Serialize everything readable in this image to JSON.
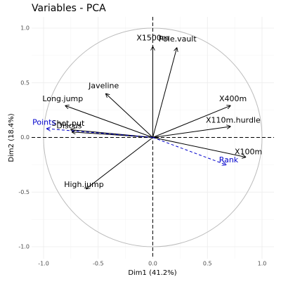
{
  "chart_data": {
    "type": "pca-variables",
    "title": "Variables - PCA",
    "xlabel": "Dim1 (41.2%)",
    "ylabel": "Dim2 (18.4%)",
    "xlim": [
      -1.0,
      1.0
    ],
    "ylim": [
      -1.0,
      1.0
    ],
    "xticks": [
      {
        "value": -1.0,
        "label": "-1.0"
      },
      {
        "value": -0.5,
        "label": "-0.5"
      },
      {
        "value": 0,
        "label": "0.0"
      },
      {
        "value": 0.5,
        "label": "0.5"
      },
      {
        "value": 1.0,
        "label": "1.0"
      }
    ],
    "yticks": [
      {
        "value": -1.0,
        "label": "-1.0"
      },
      {
        "value": -0.5,
        "label": "-0.5"
      },
      {
        "value": 0,
        "label": "0.0"
      },
      {
        "value": 0.5,
        "label": "0.5"
      },
      {
        "value": 1.0,
        "label": "1.0"
      }
    ],
    "grid": true,
    "series": [
      {
        "color": "#000000",
        "dashed": false,
        "points": [
          {
            "name": "X1500m",
            "x": 0.0,
            "y": 0.83
          },
          {
            "name": "Pole.vault",
            "x": 0.22,
            "y": 0.82
          },
          {
            "name": "Javeline",
            "x": -0.43,
            "y": 0.4
          },
          {
            "name": "Long.jump",
            "x": -0.8,
            "y": 0.29
          },
          {
            "name": "Shot.put",
            "x": -0.75,
            "y": 0.07
          },
          {
            "name": "Discus",
            "x": -0.74,
            "y": 0.05
          },
          {
            "name": "X400m",
            "x": 0.71,
            "y": 0.29
          },
          {
            "name": "X110m.hurdle",
            "x": 0.71,
            "y": 0.1
          },
          {
            "name": "X100m",
            "x": 0.85,
            "y": -0.18
          },
          {
            "name": "High.jump",
            "x": -0.61,
            "y": -0.47
          }
        ]
      },
      {
        "color": "#0000cc",
        "dashed": true,
        "points": [
          {
            "name": "Points",
            "x": -0.97,
            "y": 0.08
          },
          {
            "name": "Rank",
            "x": 0.67,
            "y": -0.25
          }
        ]
      }
    ]
  }
}
